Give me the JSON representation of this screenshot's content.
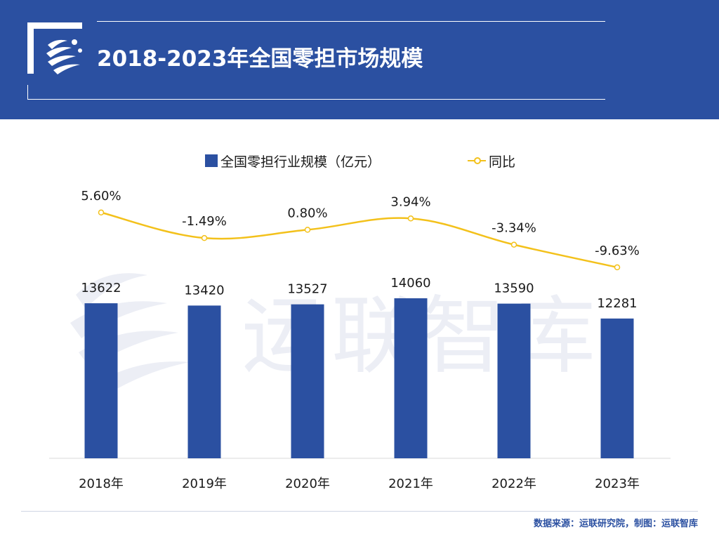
{
  "header": {
    "title": "2018-2023年全国零担市场规模"
  },
  "watermark": {
    "text": "运联智库"
  },
  "colors": {
    "header_bg": "#2b50a1",
    "bar": "#2b50a1",
    "line": "#f3c11b",
    "source_text": "#2b50a1"
  },
  "chart_data": {
    "type": "bar",
    "categories": [
      "2018年",
      "2019年",
      "2020年",
      "2021年",
      "2022年",
      "2023年"
    ],
    "series": [
      {
        "name": "全国零担行业规模（亿元）",
        "type": "bar",
        "values": [
          13622,
          13420,
          13527,
          14060,
          13590,
          12281
        ],
        "labels": [
          "13622",
          "13420",
          "13527",
          "14060",
          "13590",
          "12281"
        ]
      },
      {
        "name": "同比",
        "type": "line",
        "values": [
          5.6,
          -1.49,
          0.8,
          3.94,
          -3.34,
          -9.63
        ],
        "labels": [
          "5.60%",
          "-1.49%",
          "0.80%",
          "3.94%",
          "-3.34%",
          "-9.63%"
        ]
      }
    ],
    "legend_position": "top-center",
    "grid": false
  },
  "footer": {
    "source": "数据来源：运联研究院，制图：运联智库"
  }
}
